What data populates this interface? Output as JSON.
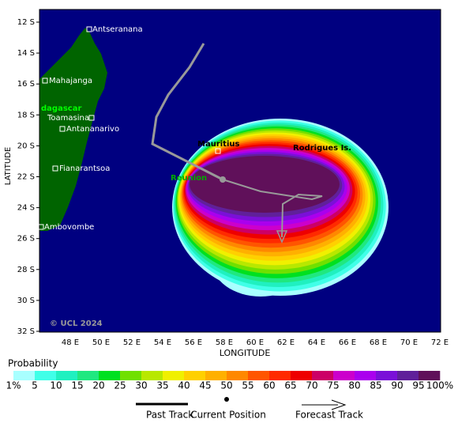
{
  "map": {
    "y_axis_label": "LATITUDE",
    "x_axis_label": "LONGITUDE",
    "y_ticks": [
      "12 S",
      "14 S",
      "16 S",
      "18 S",
      "20 S",
      "22 S",
      "24 S",
      "26 S",
      "28 S",
      "30 S",
      "32 S"
    ],
    "x_ticks": [
      "48 E",
      "50 E",
      "52 E",
      "54 E",
      "56 E",
      "58 E",
      "60 E",
      "62 E",
      "64 E",
      "66 E",
      "68 E",
      "70 E",
      "72 E"
    ],
    "places": [
      {
        "label": "Antseranana"
      },
      {
        "label": "Mahajanga"
      },
      {
        "label": "dagascar"
      },
      {
        "label": "Toamasina"
      },
      {
        "label": "Antananarivo"
      },
      {
        "label": "Fianarantsoa"
      },
      {
        "label": "Ambovombe"
      },
      {
        "label": "Mauritius"
      },
      {
        "label": "Rodrigues Is."
      },
      {
        "label": "Reunion"
      }
    ],
    "copyright": "© UCL 2024"
  },
  "legend": {
    "title": "Probability",
    "scale_labels": [
      "1%",
      "5",
      "10",
      "15",
      "20",
      "25",
      "30",
      "35",
      "40",
      "45",
      "50",
      "55",
      "60",
      "65",
      "70",
      "75",
      "80",
      "85",
      "90",
      "95",
      "100%"
    ],
    "colors": [
      "#a8ffff",
      "#40ffe8",
      "#20f0c0",
      "#20e880",
      "#00e020",
      "#70e000",
      "#b8e800",
      "#f0f000",
      "#ffd000",
      "#ffb000",
      "#ff8800",
      "#ff5500",
      "#ff2a00",
      "#ee0000",
      "#cc0066",
      "#cc00cc",
      "#aa00ee",
      "#7a10d8",
      "#60209a",
      "#60105a"
    ],
    "items": [
      "Past Track",
      "Current Position",
      "Forecast Track"
    ]
  }
}
